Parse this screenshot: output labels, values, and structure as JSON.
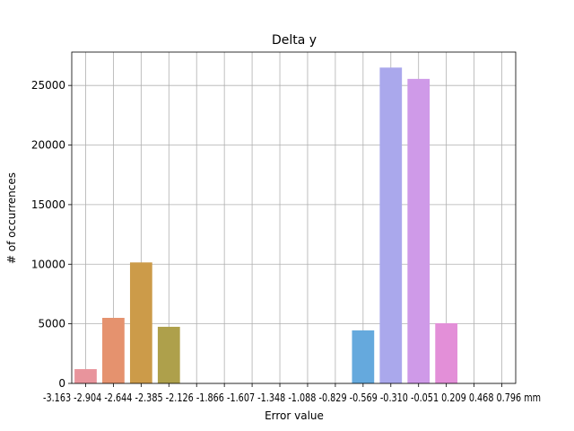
{
  "chart_data": {
    "type": "bar",
    "title": "Delta y",
    "xlabel": "Error value",
    "ylabel": "# of occurrences",
    "ylim": [
      0,
      27800
    ],
    "yticks": [
      0,
      5000,
      10000,
      15000,
      20000,
      25000
    ],
    "grid": true,
    "categories": [
      "-3.163",
      "-2.904",
      "-2.644",
      "-2.385",
      "-2.126",
      "-1.866",
      "-1.607",
      "-1.348",
      "-1.088",
      "-0.829",
      "-0.569",
      "-0.310",
      "-0.051",
      "0.209",
      "0.468",
      "0.796 mm"
    ],
    "tick_labels_text": "-3.163 -2.904 -2.644 -2.385 -2.126 -1.866 -1.607 -1.348 -1.088 -0.829 -0.569 -0.310 -0.051 0.209 0.468 0.796 mm",
    "values": [
      1200,
      5500,
      10150,
      4750,
      0,
      0,
      0,
      0,
      0,
      0,
      4450,
      26500,
      25550,
      5050,
      0,
      0
    ],
    "colors": [
      "#e8949c",
      "#e5926e",
      "#cc9b49",
      "#aea04b",
      "#9aa84b",
      "#6cb152",
      "#58b27f",
      "#5ab09c",
      "#59aeb0",
      "#5aabc4",
      "#65a9dd",
      "#aaa8ec",
      "#cf9ae8",
      "#e38fd8",
      "#e794b8",
      "#e8949c"
    ]
  }
}
